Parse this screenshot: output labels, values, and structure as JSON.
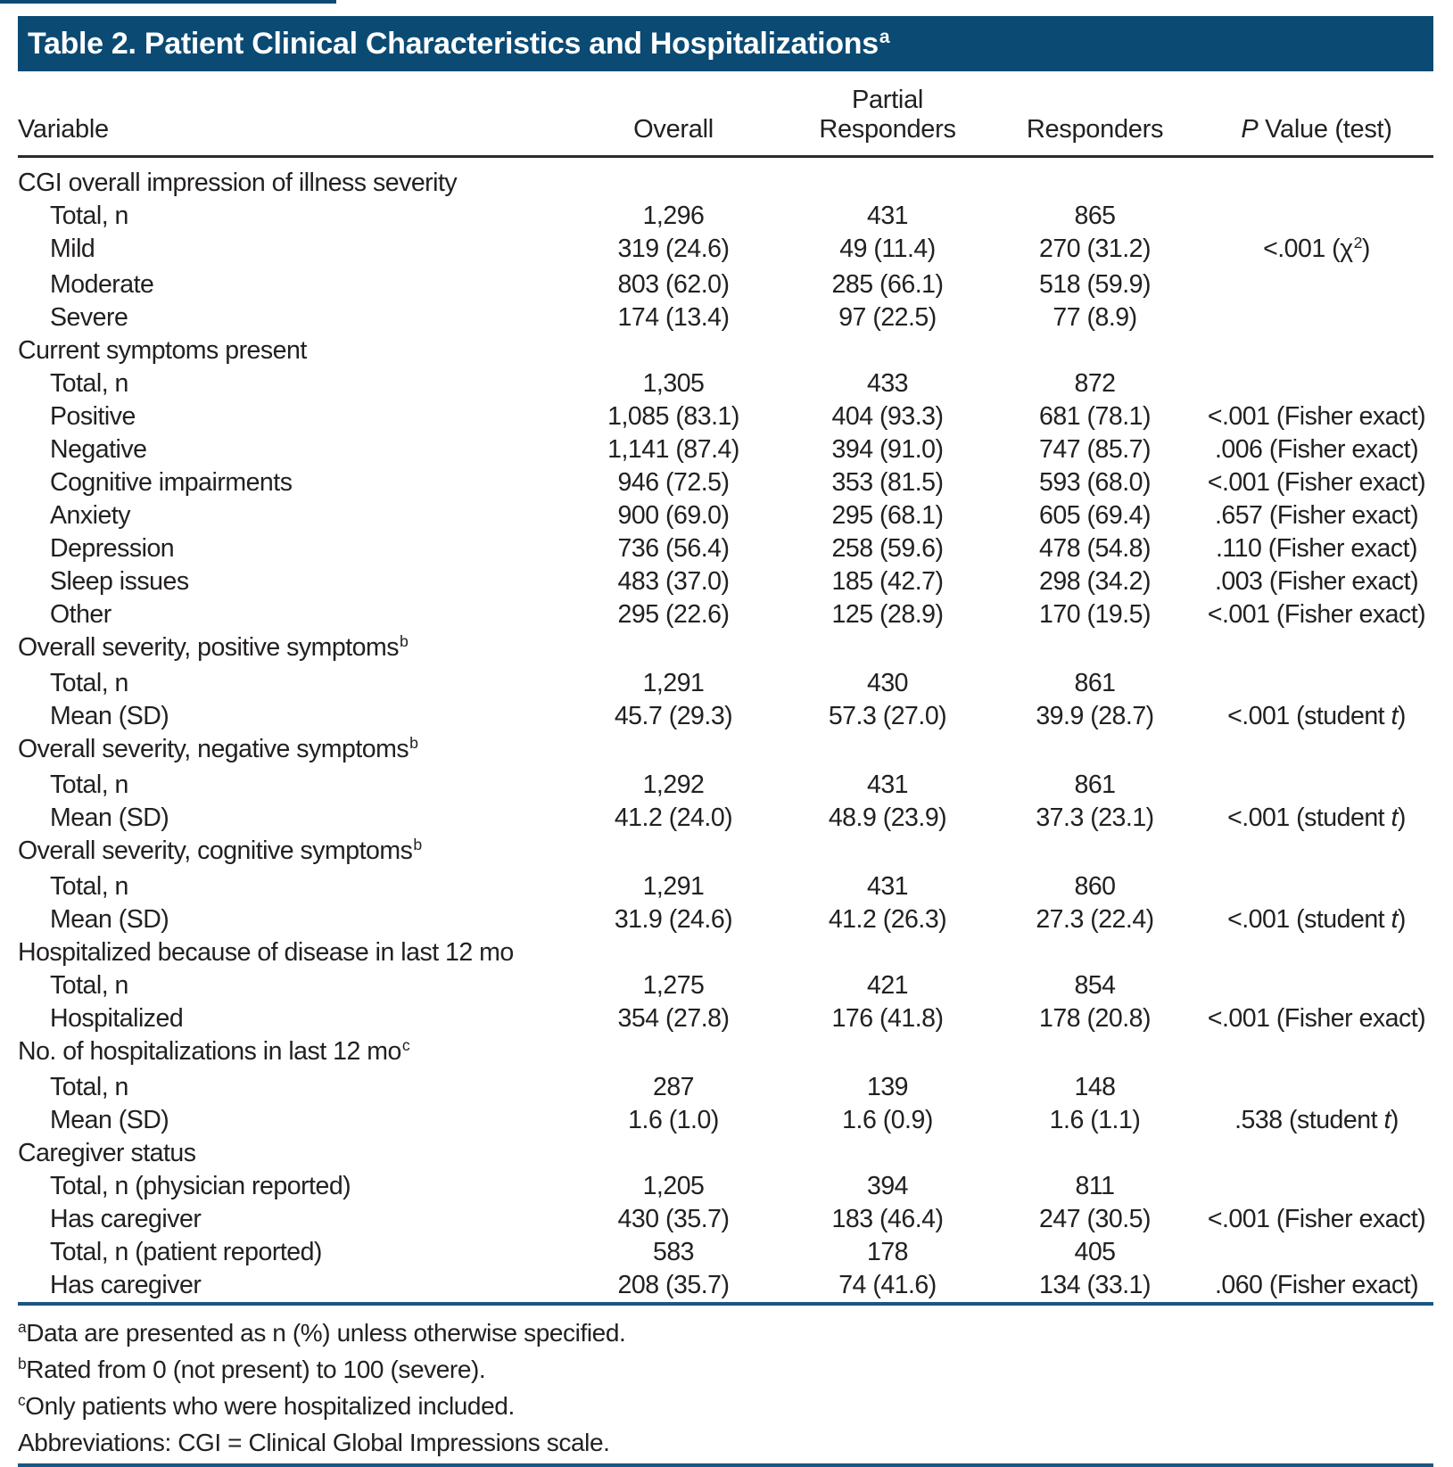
{
  "title": {
    "text": "Table 2. Patient Clinical Characteristics and Hospitalizations",
    "sup": "a"
  },
  "columns": {
    "variable": "Variable",
    "overall": "Overall",
    "partial": "Partial Responders",
    "responders": "Responders",
    "p_italic": "P",
    "p_rest": " Value (test)"
  },
  "tests": {
    "chi2": {
      "pre": "χ",
      "sup": "2"
    },
    "fisher": {
      "text": "Fisher exact"
    },
    "student": {
      "pre": "student ",
      "it": "t"
    }
  },
  "rows": [
    {
      "type": "section",
      "label": "CGI overall impression of illness severity"
    },
    {
      "type": "item",
      "label": "Total, n",
      "cells": [
        "1,296",
        "431",
        "865"
      ]
    },
    {
      "type": "item",
      "label": "Mild",
      "cells": [
        "319 (24.6)",
        "49 (11.4)",
        "270 (31.2)"
      ],
      "p": {
        "val": "<.001",
        "test": "chi2"
      }
    },
    {
      "type": "item",
      "label": "Moderate",
      "cells": [
        "803 (62.0)",
        "285 (66.1)",
        "518 (59.9)"
      ]
    },
    {
      "type": "item",
      "label": "Severe",
      "cells": [
        "174 (13.4)",
        "97 (22.5)",
        "77 (8.9)"
      ]
    },
    {
      "type": "section",
      "label": "Current symptoms present"
    },
    {
      "type": "item",
      "label": "Total, n",
      "cells": [
        "1,305",
        "433",
        "872"
      ]
    },
    {
      "type": "item",
      "label": "Positive",
      "cells": [
        "1,085 (83.1)",
        "404 (93.3)",
        "681 (78.1)"
      ],
      "p": {
        "val": "<.001",
        "test": "fisher"
      }
    },
    {
      "type": "item",
      "label": "Negative",
      "cells": [
        "1,141 (87.4)",
        "394 (91.0)",
        "747 (85.7)"
      ],
      "p": {
        "val": ".006",
        "test": "fisher"
      }
    },
    {
      "type": "item",
      "label": "Cognitive impairments",
      "cells": [
        "946 (72.5)",
        "353 (81.5)",
        "593 (68.0)"
      ],
      "p": {
        "val": "<.001",
        "test": "fisher"
      }
    },
    {
      "type": "item",
      "label": "Anxiety",
      "cells": [
        "900 (69.0)",
        "295 (68.1)",
        "605 (69.4)"
      ],
      "p": {
        "val": ".657",
        "test": "fisher"
      }
    },
    {
      "type": "item",
      "label": "Depression",
      "cells": [
        "736 (56.4)",
        "258 (59.6)",
        "478 (54.8)"
      ],
      "p": {
        "val": ".110",
        "test": "fisher"
      }
    },
    {
      "type": "item",
      "label": "Sleep issues",
      "cells": [
        "483 (37.0)",
        "185 (42.7)",
        "298 (34.2)"
      ],
      "p": {
        "val": ".003",
        "test": "fisher"
      }
    },
    {
      "type": "item",
      "label": "Other",
      "cells": [
        "295 (22.6)",
        "125 (28.9)",
        "170 (19.5)"
      ],
      "p": {
        "val": "<.001",
        "test": "fisher"
      }
    },
    {
      "type": "section",
      "label": "Overall severity, positive symptoms",
      "sup": "b"
    },
    {
      "type": "item",
      "label": "Total, n",
      "cells": [
        "1,291",
        "430",
        "861"
      ]
    },
    {
      "type": "item",
      "label": "Mean (SD)",
      "cells": [
        "45.7 (29.3)",
        "57.3 (27.0)",
        "39.9 (28.7)"
      ],
      "p": {
        "val": "<.001",
        "test": "student"
      }
    },
    {
      "type": "section",
      "label": "Overall severity, negative symptoms",
      "sup": "b"
    },
    {
      "type": "item",
      "label": "Total, n",
      "cells": [
        "1,292",
        "431",
        "861"
      ]
    },
    {
      "type": "item",
      "label": "Mean (SD)",
      "cells": [
        "41.2 (24.0)",
        "48.9 (23.9)",
        "37.3 (23.1)"
      ],
      "p": {
        "val": "<.001",
        "test": "student"
      }
    },
    {
      "type": "section",
      "label": "Overall severity, cognitive symptoms",
      "sup": "b"
    },
    {
      "type": "item",
      "label": "Total, n",
      "cells": [
        "1,291",
        "431",
        "860"
      ]
    },
    {
      "type": "item",
      "label": "Mean (SD)",
      "cells": [
        "31.9 (24.6)",
        "41.2 (26.3)",
        "27.3 (22.4)"
      ],
      "p": {
        "val": "<.001",
        "test": "student"
      }
    },
    {
      "type": "section",
      "label": "Hospitalized because of disease in last 12 mo"
    },
    {
      "type": "item",
      "label": "Total, n",
      "cells": [
        "1,275",
        "421",
        "854"
      ]
    },
    {
      "type": "item",
      "label": "Hospitalized",
      "cells": [
        "354 (27.8)",
        "176 (41.8)",
        "178 (20.8)"
      ],
      "p": {
        "val": "<.001",
        "test": "fisher"
      }
    },
    {
      "type": "section",
      "label": "No. of hospitalizations in last 12 mo",
      "sup": "c"
    },
    {
      "type": "item",
      "label": "Total, n",
      "cells": [
        "287",
        "139",
        "148"
      ]
    },
    {
      "type": "item",
      "label": "Mean (SD)",
      "cells": [
        "1.6 (1.0)",
        "1.6 (0.9)",
        "1.6 (1.1)"
      ],
      "p": {
        "val": ".538",
        "test": "student"
      }
    },
    {
      "type": "section",
      "label": "Caregiver status"
    },
    {
      "type": "item",
      "label": "Total, n (physician reported)",
      "cells": [
        "1,205",
        "394",
        "811"
      ]
    },
    {
      "type": "item",
      "label": "Has caregiver",
      "cells": [
        "430 (35.7)",
        "183 (46.4)",
        "247 (30.5)"
      ],
      "p": {
        "val": "<.001",
        "test": "fisher"
      }
    },
    {
      "type": "item",
      "label": "Total, n (patient reported)",
      "cells": [
        "583",
        "178",
        "405"
      ]
    },
    {
      "type": "item",
      "label": "Has caregiver",
      "cells": [
        "208 (35.7)",
        "74 (41.6)",
        "134 (33.1)"
      ],
      "p": {
        "val": ".060",
        "test": "fisher"
      }
    }
  ],
  "footnotes": [
    {
      "sup": "a",
      "text": "Data are presented as n (%) unless otherwise specified."
    },
    {
      "sup": "b",
      "text": "Rated from 0 (not present) to 100 (severe)."
    },
    {
      "sup": "c",
      "text": "Only patients who were hospitalized included."
    },
    {
      "sup": "",
      "text": "Abbreviations: CGI = Clinical Global Impressions scale."
    }
  ],
  "colors": {
    "header_bar_bg": "#0B4A73",
    "rule_blue": "#1A567F",
    "rule_dark": "#2B2A2A",
    "text": "#232020"
  }
}
